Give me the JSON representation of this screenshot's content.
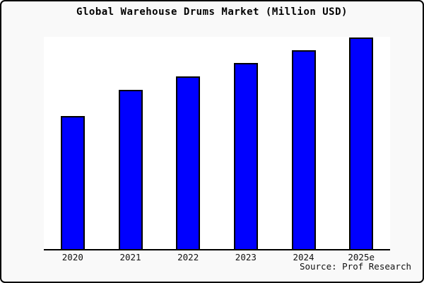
{
  "chart_data": {
    "type": "bar",
    "title": "Global Warehouse Drums Market (Million USD)",
    "categories": [
      "2020",
      "2021",
      "2022",
      "2023",
      "2024",
      "2025e"
    ],
    "values": [
      62.9,
      75.3,
      81.6,
      88.0,
      94.0,
      100.0
    ],
    "values_note": "y-axis is unlabeled in the chart; values are relative bar heights estimated from pixels (2025e = 100)",
    "xlabel": "",
    "ylabel": "",
    "ylim": [
      0,
      100.4
    ],
    "grid": false,
    "legend": "none",
    "source": "Source: Prof Research",
    "colors": {
      "bar_fill": "#0000ff",
      "bar_border": "#000000",
      "plot_background": "#ffffff",
      "canvas_background": "#f9f9f9",
      "frame_border": "#000000",
      "text": "#000000"
    }
  }
}
